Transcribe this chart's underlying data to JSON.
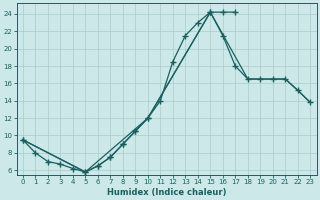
{
  "xlabel": "Humidex (Indice chaleur)",
  "background_color": "#cce8e8",
  "grid_color": "#aacccc",
  "line_color": "#1a6060",
  "xlim": [
    -0.5,
    23.5
  ],
  "ylim": [
    5.5,
    25.2
  ],
  "xticks": [
    0,
    1,
    2,
    3,
    4,
    5,
    6,
    7,
    8,
    9,
    10,
    11,
    12,
    13,
    14,
    15,
    16,
    17,
    18,
    19,
    20,
    21,
    22,
    23
  ],
  "yticks": [
    6,
    8,
    10,
    12,
    14,
    16,
    18,
    20,
    22,
    24
  ],
  "line1_x": [
    0,
    1,
    2,
    3,
    4,
    5,
    6,
    7,
    8,
    9,
    10,
    11,
    12,
    13,
    14,
    15,
    16,
    17
  ],
  "line1_y": [
    9.5,
    8.0,
    7.0,
    6.7,
    6.2,
    5.8,
    6.5,
    7.5,
    9.0,
    10.5,
    12.0,
    14.0,
    18.5,
    21.5,
    23.0,
    24.2,
    24.2,
    24.2
  ],
  "line2_x": [
    0,
    5,
    6,
    7,
    8,
    9,
    10,
    15,
    16,
    17,
    18,
    19,
    20,
    21,
    22,
    23
  ],
  "line2_y": [
    9.5,
    5.8,
    6.5,
    7.5,
    9.0,
    10.5,
    12.0,
    24.2,
    21.5,
    18.0,
    16.5,
    16.5,
    16.5,
    16.5,
    15.2,
    13.8
  ],
  "line3_x": [
    0,
    5,
    10,
    15,
    18,
    19,
    20,
    21,
    22,
    23
  ],
  "line3_y": [
    9.5,
    5.8,
    12.0,
    24.2,
    16.5,
    16.5,
    16.5,
    16.5,
    15.2,
    13.8
  ],
  "marker": "+",
  "markersize": 4.0,
  "linewidth": 0.9
}
